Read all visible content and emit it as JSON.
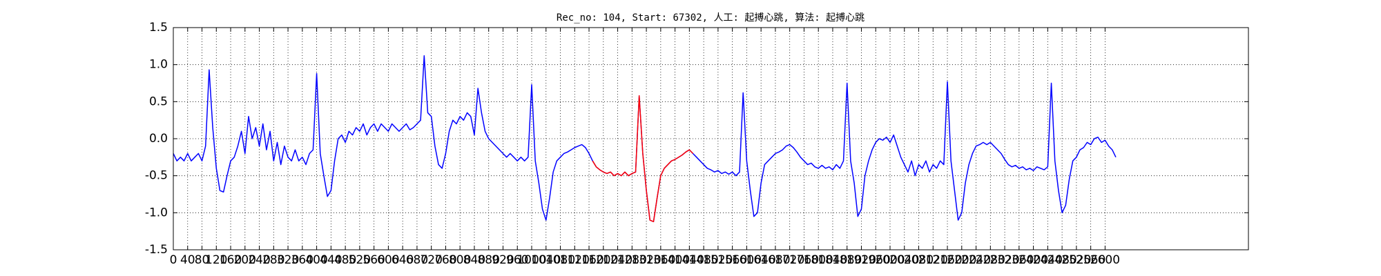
{
  "chart_data": {
    "type": "line",
    "title": "Rec_no: 104, Start: 67302, 人工: 起搏心跳, 算法: 起搏心跳",
    "x": [
      0,
      10,
      20,
      30,
      40,
      50,
      60,
      70,
      80,
      90,
      100,
      110,
      120,
      130,
      140,
      150,
      160,
      170,
      180,
      190,
      200,
      210,
      220,
      230,
      240,
      250,
      260,
      270,
      280,
      290,
      300,
      310,
      320,
      330,
      340,
      350,
      360,
      370,
      380,
      390,
      400,
      410,
      420,
      430,
      440,
      450,
      460,
      470,
      480,
      490,
      500,
      510,
      520,
      530,
      540,
      550,
      560,
      570,
      580,
      590,
      600,
      610,
      620,
      630,
      640,
      650,
      660,
      670,
      680,
      690,
      700,
      710,
      720,
      730,
      740,
      750,
      760,
      770,
      780,
      790,
      800,
      810,
      820,
      830,
      840,
      850,
      860,
      870,
      880,
      890,
      900,
      910,
      920,
      930,
      940,
      950,
      960,
      970,
      980,
      990,
      1000,
      1010,
      1020,
      1030,
      1040,
      1050,
      1060,
      1070,
      1080,
      1090,
      1100,
      1110,
      1120,
      1130,
      1140,
      1150,
      1160,
      1170,
      1180,
      1190,
      1200,
      1210,
      1220,
      1230,
      1240,
      1250,
      1260,
      1270,
      1280,
      1290,
      1300,
      1310,
      1320,
      1330,
      1340,
      1350,
      1360,
      1370,
      1380,
      1390,
      1400,
      1410,
      1420,
      1430,
      1440,
      1450,
      1460,
      1470,
      1480,
      1490,
      1500,
      1510,
      1520,
      1530,
      1540,
      1550,
      1560,
      1570,
      1580,
      1590,
      1600,
      1610,
      1620,
      1630,
      1640,
      1650,
      1660,
      1670,
      1680,
      1690,
      1700,
      1710,
      1720,
      1730,
      1740,
      1750,
      1760,
      1770,
      1780,
      1790,
      1800,
      1810,
      1820,
      1830,
      1840,
      1850,
      1860,
      1870,
      1880,
      1890,
      1900,
      1910,
      1920,
      1930,
      1940,
      1950,
      1960,
      1970,
      1980,
      1990,
      2000,
      2010,
      2020,
      2030,
      2040,
      2050,
      2060,
      2070,
      2080,
      2090,
      2100,
      2110,
      2120,
      2130,
      2140,
      2150,
      2160,
      2170,
      2180,
      2190,
      2200,
      2210,
      2220,
      2230,
      2240,
      2250,
      2260,
      2270,
      2280,
      2290,
      2300,
      2310,
      2320,
      2330,
      2340,
      2350,
      2360,
      2370,
      2380,
      2390,
      2400,
      2410,
      2420,
      2430,
      2440,
      2450,
      2460,
      2470,
      2480,
      2490,
      2500,
      2510,
      2520,
      2530,
      2540,
      2550,
      2560,
      2570,
      2580,
      2590,
      2600,
      2610,
      2620,
      2630
    ],
    "series": [
      {
        "color": "#0000ff",
        "values": [
          -0.2,
          -0.3,
          -0.25,
          -0.3,
          -0.2,
          -0.3,
          -0.25,
          -0.2,
          -0.3,
          -0.1,
          0.93,
          0.15,
          -0.4,
          -0.7,
          -0.72,
          -0.5,
          -0.3,
          -0.25,
          -0.1,
          0.1,
          -0.2,
          0.3,
          0,
          0.15,
          -0.1,
          0.2,
          -0.15,
          0.1,
          -0.3,
          -0.05,
          -0.35,
          -0.1,
          -0.25,
          -0.3,
          -0.15,
          -0.3,
          -0.25,
          -0.35,
          -0.2,
          -0.15,
          0.88,
          -0.2,
          -0.5,
          -0.78,
          -0.7,
          -0.3,
          0,
          0.05,
          -0.05,
          0.1,
          0.05,
          0.15,
          0.1,
          0.2,
          0.05,
          0.15,
          0.2,
          0.1,
          0.2,
          0.15,
          0.1,
          0.2,
          0.15,
          0.1,
          0.15,
          0.2,
          0.12,
          0.15,
          0.2,
          0.25,
          1.12,
          0.35,
          0.3,
          -0.1,
          -0.35,
          -0.4,
          -0.2,
          0.1,
          0.25,
          0.2,
          0.3,
          0.25,
          0.35,
          0.3,
          0.05,
          0.68,
          0.35,
          0.1,
          0,
          -0.05,
          -0.1,
          -0.15,
          -0.2,
          -0.25,
          -0.2,
          -0.25,
          -0.3,
          -0.25,
          -0.3,
          -0.25,
          0.73,
          -0.3,
          -0.6,
          -0.95,
          -1.1,
          -0.8,
          -0.45,
          -0.3,
          -0.25,
          -0.2,
          -0.18,
          -0.15,
          -0.12,
          -0.1,
          -0.08,
          -0.12,
          -0.2,
          -0.3,
          -0.38,
          -0.42,
          -0.45,
          -0.47,
          -0.45,
          -0.5,
          -0.47,
          -0.5,
          -0.45,
          -0.5,
          -0.47,
          -0.45,
          0.58,
          -0.2,
          -0.7,
          -1.1,
          -1.12,
          -0.8,
          -0.5,
          -0.4,
          -0.35,
          -0.3,
          -0.28,
          -0.25,
          -0.22,
          -0.18,
          -0.15,
          -0.2,
          -0.25,
          -0.3,
          -0.35,
          -0.4,
          -0.42,
          -0.45,
          -0.43,
          -0.47,
          -0.45,
          -0.48,
          -0.45,
          -0.5,
          -0.45,
          0.62,
          -0.3,
          -0.7,
          -1.05,
          -1,
          -0.6,
          -0.35,
          -0.3,
          -0.25,
          -0.2,
          -0.18,
          -0.15,
          -0.1,
          -0.08,
          -0.12,
          -0.18,
          -0.25,
          -0.3,
          -0.35,
          -0.33,
          -0.38,
          -0.4,
          -0.36,
          -0.4,
          -0.38,
          -0.42,
          -0.35,
          -0.4,
          -0.3,
          0.75,
          -0.3,
          -0.6,
          -1.05,
          -0.95,
          -0.5,
          -0.3,
          -0.15,
          -0.05,
          0,
          -0.02,
          0.02,
          -0.05,
          0.05,
          -0.1,
          -0.25,
          -0.35,
          -0.45,
          -0.3,
          -0.5,
          -0.35,
          -0.4,
          -0.3,
          -0.45,
          -0.35,
          -0.4,
          -0.3,
          -0.35,
          0.77,
          -0.3,
          -0.7,
          -1.1,
          -1,
          -0.6,
          -0.35,
          -0.2,
          -0.1,
          -0.08,
          -0.05,
          -0.08,
          -0.05,
          -0.1,
          -0.15,
          -0.2,
          -0.28,
          -0.35,
          -0.38,
          -0.36,
          -0.4,
          -0.38,
          -0.42,
          -0.4,
          -0.43,
          -0.38,
          -0.4,
          -0.42,
          -0.38,
          0.75,
          -0.3,
          -0.7,
          -1,
          -0.9,
          -0.55,
          -0.3,
          -0.25,
          -0.15,
          -0.12,
          -0.05,
          -0.08,
          0,
          0.02,
          -0.05,
          -0.02,
          -0.1,
          -0.15,
          -0.25
        ]
      },
      {
        "color": "#ff0000",
        "x": [
          1170,
          1180,
          1190,
          1200,
          1210,
          1220,
          1230,
          1240,
          1250,
          1260,
          1270,
          1280,
          1290,
          1300,
          1310,
          1320,
          1330,
          1340,
          1350,
          1360,
          1370,
          1380,
          1390,
          1400,
          1410,
          1420,
          1430,
          1440,
          1450
        ],
        "values": [
          -0.3,
          -0.38,
          -0.42,
          -0.45,
          -0.47,
          -0.45,
          -0.5,
          -0.47,
          -0.5,
          -0.45,
          -0.5,
          -0.47,
          -0.45,
          0.58,
          -0.2,
          -0.7,
          -1.1,
          -1.12,
          -0.8,
          -0.5,
          -0.4,
          -0.35,
          -0.3,
          -0.28,
          -0.25,
          -0.22,
          -0.18,
          -0.15,
          -0.2
        ]
      }
    ],
    "xlim": [
      0,
      3000
    ],
    "ylim": [
      -1.5,
      1.5
    ],
    "xticks": [
      0,
      40,
      80,
      120,
      160,
      200,
      240,
      280,
      320,
      360,
      400,
      440,
      480,
      520,
      560,
      600,
      640,
      680,
      720,
      760,
      800,
      840,
      880,
      920,
      960,
      1000,
      1040,
      1080,
      1120,
      1160,
      1200,
      1240,
      1280,
      1320,
      1360,
      1400,
      1440,
      1480,
      1520,
      1560,
      1600,
      1640,
      1680,
      1720,
      1760,
      1800,
      1840,
      1880,
      1920,
      1960,
      2000,
      2040,
      2080,
      2120,
      2160,
      2200,
      2240,
      2280,
      2320,
      2360,
      2400,
      2440,
      2480,
      2520,
      2560,
      2600
    ],
    "yticks": [
      -1.5,
      {
        "value": -1,
        "label": "-1.0"
      },
      -0.5,
      {
        "value": 0,
        "label": "0.0"
      },
      0.5,
      {
        "value": 1,
        "label": "1.0"
      },
      1.5
    ],
    "grid": true
  }
}
